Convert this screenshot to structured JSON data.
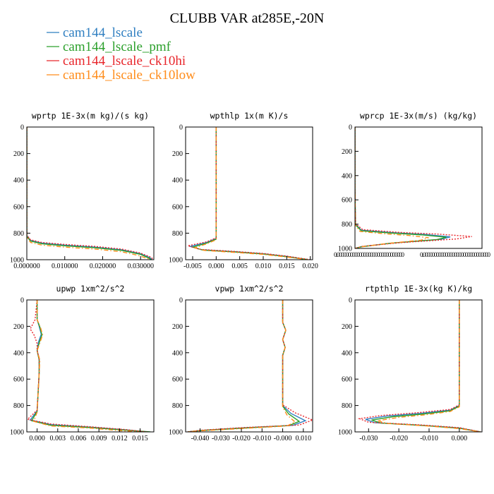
{
  "figure": {
    "title": "CLUBB VAR at285E,-20N"
  },
  "legend": [
    {
      "name": "cam144_lscale",
      "color": "#2f7fc1",
      "dash": "solid"
    },
    {
      "name": "cam144_lscale_pmf",
      "color": "#2ca02c",
      "dash": "solid"
    },
    {
      "name": "cam144_lscale_ck10hi",
      "color": "#e8262b",
      "dash": "dotted"
    },
    {
      "name": "cam144_lscale_ck10low",
      "color": "#ff8c1a",
      "dash": "dashdot"
    }
  ],
  "chart_data": [
    {
      "type": "line",
      "title": "wprtp  1E-3x(m kg)/(s kg)",
      "xlim": [
        0.0,
        0.0335
      ],
      "xticks": [
        0.0,
        0.01,
        0.02,
        0.03
      ],
      "xticklabels": [
        "0.000000",
        "0.010000",
        "0.020000",
        "0.030000"
      ],
      "ylim": [
        1000,
        0
      ],
      "yticks": [
        0,
        200,
        400,
        600,
        800,
        1000
      ],
      "yticklabels": [
        "0",
        "200",
        "400",
        "600",
        "800",
        "1000"
      ],
      "grid": false,
      "series": [
        {
          "name": "cam144_lscale",
          "x": [
            0,
            0,
            0.001,
            0.004,
            0.01,
            0.018,
            0.025,
            0.03,
            0.0325,
            0.033
          ],
          "y": [
            0,
            820,
            855,
            875,
            890,
            905,
            925,
            955,
            985,
            1000
          ]
        },
        {
          "name": "cam144_lscale_pmf",
          "x": [
            0,
            0,
            0.001,
            0.004,
            0.01,
            0.018,
            0.025,
            0.03,
            0.0322,
            0.0328
          ],
          "y": [
            0,
            825,
            860,
            880,
            895,
            910,
            930,
            960,
            988,
            1000
          ]
        },
        {
          "name": "cam144_lscale_ck10hi",
          "x": [
            0,
            0,
            0.001,
            0.004,
            0.01,
            0.018,
            0.025,
            0.03,
            0.0328,
            0.0334
          ],
          "y": [
            0,
            815,
            850,
            870,
            885,
            900,
            920,
            950,
            982,
            1000
          ]
        },
        {
          "name": "cam144_lscale_ck10low",
          "x": [
            0,
            0,
            0.001,
            0.004,
            0.01,
            0.018,
            0.025,
            0.029,
            0.0318,
            0.0326
          ],
          "y": [
            0,
            830,
            870,
            890,
            905,
            920,
            940,
            965,
            990,
            1000
          ]
        }
      ]
    },
    {
      "type": "line",
      "title": "wpthlp  1x(m K)/s",
      "xlim": [
        -0.0065,
        0.0205
      ],
      "xticks": [
        -0.005,
        0.0,
        0.005,
        0.01,
        0.015,
        0.02
      ],
      "xticklabels": [
        "-0.005",
        "0.000",
        "0.005",
        "0.010",
        "0.015",
        "0.020"
      ],
      "ylim": [
        1000,
        0
      ],
      "yticks": [
        0,
        200,
        400,
        600,
        800,
        1000
      ],
      "yticklabels": [
        "0",
        "200",
        "400",
        "600",
        "800",
        "1000"
      ],
      "grid": false,
      "series": [
        {
          "name": "cam144_lscale",
          "x": [
            0,
            0,
            -0.002,
            -0.0055,
            -0.003,
            0.004,
            0.01,
            0.015,
            0.0195
          ],
          "y": [
            0,
            840,
            870,
            900,
            925,
            940,
            955,
            975,
            1000
          ]
        },
        {
          "name": "cam144_lscale_pmf",
          "x": [
            0,
            0,
            -0.002,
            -0.005,
            -0.0028,
            0.004,
            0.01,
            0.015,
            0.0195
          ],
          "y": [
            0,
            845,
            875,
            905,
            928,
            942,
            957,
            977,
            1000
          ]
        },
        {
          "name": "cam144_lscale_ck10hi",
          "x": [
            0,
            0,
            -0.002,
            -0.006,
            -0.0035,
            0.004,
            0.01,
            0.015,
            0.02
          ],
          "y": [
            0,
            835,
            865,
            895,
            922,
            938,
            953,
            973,
            1000
          ]
        },
        {
          "name": "cam144_lscale_ck10low",
          "x": [
            0,
            0,
            -0.002,
            -0.0045,
            -0.0025,
            0.004,
            0.01,
            0.015,
            0.0195
          ],
          "y": [
            0,
            850,
            880,
            910,
            930,
            945,
            960,
            980,
            1000
          ]
        }
      ]
    },
    {
      "type": "line",
      "title": "wprcp  1E-3x(m/s) (kg/kg)",
      "xlim": [
        0,
        1
      ],
      "xticks": [
        0,
        1
      ],
      "xticklabels": [
        "0.000000000000000000000000000000",
        "0.000000000000000000000000000000"
      ],
      "ylim": [
        1000,
        0
      ],
      "yticks": [
        0,
        200,
        400,
        600,
        800,
        1000
      ],
      "yticklabels": [
        "0",
        "200",
        "400",
        "600",
        "800",
        "1000"
      ],
      "grid": false,
      "series": [
        {
          "name": "cam144_lscale",
          "x": [
            0,
            0,
            0.004,
            0.05,
            0.3,
            0.55,
            0.75,
            0.68,
            0.3,
            0.05,
            0.0
          ],
          "y": [
            0,
            500,
            800,
            850,
            870,
            885,
            905,
            925,
            955,
            985,
            1000
          ]
        },
        {
          "name": "cam144_lscale_pmf",
          "x": [
            0,
            0,
            0.004,
            0.05,
            0.28,
            0.52,
            0.72,
            0.64,
            0.28,
            0.05,
            0.0
          ],
          "y": [
            0,
            500,
            805,
            855,
            873,
            888,
            908,
            928,
            957,
            987,
            1000
          ]
        },
        {
          "name": "cam144_lscale_ck10hi",
          "x": [
            0,
            0,
            0.004,
            0.06,
            0.35,
            0.65,
            0.92,
            0.8,
            0.35,
            0.06,
            0.0
          ],
          "y": [
            0,
            500,
            795,
            845,
            868,
            882,
            902,
            922,
            953,
            983,
            1000
          ]
        },
        {
          "name": "cam144_lscale_ck10low",
          "x": [
            0,
            0,
            0.004,
            0.04,
            0.22,
            0.42,
            0.58,
            0.52,
            0.25,
            0.04,
            0.0
          ],
          "y": [
            0,
            500,
            810,
            860,
            878,
            893,
            912,
            932,
            960,
            988,
            1000
          ]
        }
      ]
    },
    {
      "type": "line",
      "title": "upwp  1xm^2/s^2",
      "xlim": [
        -0.0015,
        0.017
      ],
      "xticks": [
        0.0,
        0.003,
        0.006,
        0.009,
        0.012,
        0.015
      ],
      "xticklabels": [
        "0.000",
        "0.003",
        "0.006",
        "0.009",
        "0.012",
        "0.015"
      ],
      "ylim": [
        1000,
        0
      ],
      "yticks": [
        0,
        200,
        400,
        600,
        800,
        1000
      ],
      "yticklabels": [
        "0",
        "200",
        "400",
        "600",
        "800",
        "1000"
      ],
      "grid": false,
      "series": [
        {
          "name": "cam144_lscale",
          "x": [
            0,
            0,
            0.0003,
            0.0006,
            0.0002,
            0,
            0.0003,
            0.0003,
            0,
            -0.001,
            0.002,
            0.008,
            0.013,
            0.016
          ],
          "y": [
            0,
            150,
            200,
            260,
            320,
            380,
            450,
            550,
            840,
            910,
            945,
            965,
            985,
            1000
          ]
        },
        {
          "name": "cam144_lscale_pmf",
          "x": [
            0,
            0,
            0.0004,
            0.0007,
            0.0003,
            0,
            0.0003,
            0.0003,
            0,
            -0.0008,
            0.002,
            0.008,
            0.013,
            0.0165
          ],
          "y": [
            0,
            150,
            205,
            265,
            325,
            385,
            455,
            555,
            845,
            915,
            950,
            968,
            987,
            1000
          ]
        },
        {
          "name": "cam144_lscale_ck10hi",
          "x": [
            0,
            -0.0003,
            -0.001,
            -0.0004,
            0,
            0,
            0.0003,
            0.0003,
            0,
            -0.0014,
            0.002,
            0.008,
            0.013,
            0.016
          ],
          "y": [
            0,
            150,
            220,
            270,
            330,
            380,
            450,
            550,
            835,
            905,
            940,
            962,
            983,
            1000
          ]
        },
        {
          "name": "cam144_lscale_ck10low",
          "x": [
            0,
            0,
            0.0005,
            0.0008,
            0.0004,
            0,
            0.0004,
            0.0003,
            0,
            -0.0005,
            0.002,
            0.008,
            0.012,
            0.015
          ],
          "y": [
            0,
            150,
            210,
            265,
            325,
            385,
            455,
            555,
            850,
            920,
            955,
            972,
            990,
            1000
          ]
        }
      ]
    },
    {
      "type": "line",
      "title": "vpwp  1xm^2/s^2",
      "xlim": [
        -0.047,
        0.0145
      ],
      "xticks": [
        -0.04,
        -0.03,
        -0.02,
        -0.01,
        0.0,
        0.01
      ],
      "xticklabels": [
        "-0.040",
        "-0.030",
        "-0.020",
        "-0.010",
        "-0.000",
        "0.010"
      ],
      "ylim": [
        1000,
        0
      ],
      "yticks": [
        0,
        200,
        400,
        600,
        800,
        1000
      ],
      "yticklabels": [
        "0",
        "200",
        "400",
        "600",
        "800",
        "1000"
      ],
      "grid": false,
      "series": [
        {
          "name": "cam144_lscale",
          "x": [
            0,
            0,
            0.0015,
            0,
            0.0012,
            0,
            0,
            0.004,
            0.011,
            0.005,
            -0.02,
            -0.04,
            -0.046
          ],
          "y": [
            0,
            170,
            230,
            300,
            360,
            420,
            800,
            860,
            915,
            950,
            970,
            990,
            1000
          ]
        },
        {
          "name": "cam144_lscale_pmf",
          "x": [
            0,
            0,
            0.0015,
            0,
            0.0012,
            0,
            0,
            0.003,
            0.008,
            0.003,
            -0.02,
            -0.04,
            -0.046
          ],
          "y": [
            0,
            170,
            230,
            300,
            360,
            420,
            805,
            865,
            920,
            952,
            972,
            990,
            1000
          ]
        },
        {
          "name": "cam144_lscale_ck10hi",
          "x": [
            0,
            0,
            0.0015,
            0,
            0.0012,
            0,
            0,
            0.006,
            0.0145,
            0.008,
            -0.02,
            -0.04,
            -0.046
          ],
          "y": [
            0,
            170,
            230,
            300,
            360,
            420,
            795,
            855,
            910,
            948,
            968,
            988,
            1000
          ]
        },
        {
          "name": "cam144_lscale_ck10low",
          "x": [
            0,
            0,
            0.0015,
            0,
            0.0012,
            0,
            0,
            0.002,
            0.006,
            0.002,
            -0.02,
            -0.04,
            -0.046
          ],
          "y": [
            0,
            170,
            230,
            300,
            360,
            420,
            810,
            870,
            925,
            955,
            975,
            992,
            1000
          ]
        }
      ]
    },
    {
      "type": "line",
      "title": "rtpthlp  1E-3x(kg K)/kg",
      "xlim": [
        -0.0345,
        0.0075
      ],
      "xticks": [
        -0.03,
        -0.02,
        -0.01,
        0.0
      ],
      "xticklabels": [
        "-0.030",
        "-0.020",
        "-0.010",
        "0.000"
      ],
      "ylim": [
        1000,
        0
      ],
      "yticks": [
        0,
        200,
        400,
        600,
        800,
        1000
      ],
      "yticklabels": [
        "0",
        "200",
        "400",
        "600",
        "800",
        "1000"
      ],
      "grid": false,
      "series": [
        {
          "name": "cam144_lscale",
          "x": [
            0,
            0,
            -0.003,
            -0.013,
            -0.024,
            -0.031,
            -0.028,
            -0.012,
            0,
            0.007
          ],
          "y": [
            0,
            800,
            835,
            860,
            880,
            905,
            930,
            950,
            970,
            1000
          ]
        },
        {
          "name": "cam144_lscale_pmf",
          "x": [
            0,
            0,
            -0.003,
            -0.012,
            -0.022,
            -0.029,
            -0.026,
            -0.011,
            0,
            0.007
          ],
          "y": [
            0,
            805,
            840,
            865,
            885,
            910,
            933,
            953,
            972,
            1000
          ]
        },
        {
          "name": "cam144_lscale_ck10hi",
          "x": [
            0,
            0,
            -0.003,
            -0.014,
            -0.026,
            -0.033,
            -0.03,
            -0.013,
            0,
            0.007
          ],
          "y": [
            0,
            795,
            830,
            855,
            876,
            900,
            927,
            947,
            968,
            1000
          ]
        },
        {
          "name": "cam144_lscale_ck10low",
          "x": [
            0,
            0,
            -0.003,
            -0.011,
            -0.02,
            -0.027,
            -0.024,
            -0.01,
            0,
            0.007
          ],
          "y": [
            0,
            810,
            845,
            870,
            890,
            915,
            936,
            956,
            975,
            1000
          ]
        }
      ]
    }
  ]
}
